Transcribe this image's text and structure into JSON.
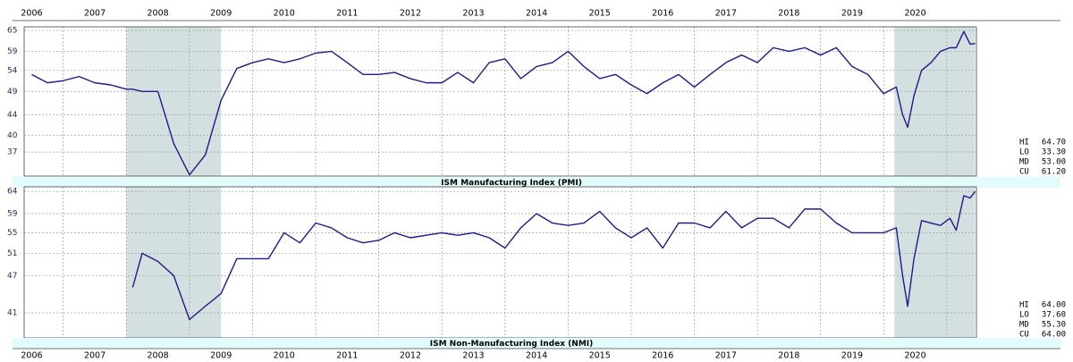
{
  "chart_data": [
    {
      "type": "line",
      "title": "ISM Manufacturing Index (PMI)",
      "log": true,
      "grid": true,
      "color": "#1c1c8a",
      "shade_color": "#d4e0e0",
      "xlim": [
        2006.38,
        2021.47
      ],
      "xticks": [
        {
          "value": 2006,
          "label": "2006"
        },
        {
          "value": 2007,
          "label": "2007"
        },
        {
          "value": 2008,
          "label": "2008"
        },
        {
          "value": 2009,
          "label": "2009"
        },
        {
          "value": 2010,
          "label": "2010"
        },
        {
          "value": 2011,
          "label": "2011"
        },
        {
          "value": 2012,
          "label": "2012"
        },
        {
          "value": 2013,
          "label": "2013"
        },
        {
          "value": 2014,
          "label": "2014"
        },
        {
          "value": 2015,
          "label": "2015"
        },
        {
          "value": 2016,
          "label": "2016"
        },
        {
          "value": 2017,
          "label": "2017"
        },
        {
          "value": 2018,
          "label": "2018"
        },
        {
          "value": 2019,
          "label": "2019"
        },
        {
          "value": 2020,
          "label": "2020"
        }
      ],
      "ylim": [
        33.1,
        66.1
      ],
      "yticks": [
        65,
        59,
        54,
        49,
        44,
        40,
        37
      ],
      "shaded_ranges": [
        [
          2008.0,
          2009.5
        ],
        [
          2020.17,
          2021.45
        ]
      ],
      "x": [
        2006.5,
        2006.75,
        2007,
        2007.25,
        2007.5,
        2007.75,
        2008,
        2008.1,
        2008.25,
        2008.5,
        2008.75,
        2009,
        2009.25,
        2009.5,
        2009.75,
        2010,
        2010.25,
        2010.5,
        2010.75,
        2011,
        2011.25,
        2011.5,
        2011.75,
        2012,
        2012.25,
        2012.5,
        2012.75,
        2013,
        2013.25,
        2013.5,
        2013.75,
        2014,
        2014.25,
        2014.5,
        2014.75,
        2015,
        2015.25,
        2015.5,
        2015.75,
        2016,
        2016.25,
        2016.5,
        2016.75,
        2017,
        2017.25,
        2017.5,
        2017.75,
        2018,
        2018.25,
        2018.5,
        2018.75,
        2019,
        2019.25,
        2019.5,
        2019.75,
        2020,
        2020.2,
        2020.3,
        2020.38,
        2020.48,
        2020.6,
        2020.75,
        2020.9,
        2021.05,
        2021.15,
        2021.27,
        2021.37,
        2021.45
      ],
      "series": [
        {
          "color": "#1c1c8a",
          "values": [
            53,
            51,
            51.5,
            52.5,
            51,
            50.5,
            49.5,
            49.5,
            49,
            49,
            38.5,
            33.3,
            36.5,
            47,
            54.5,
            56,
            57,
            56,
            57,
            58.5,
            59,
            56,
            53,
            53,
            53.5,
            52,
            51,
            51,
            53.5,
            51,
            56,
            57,
            52,
            55,
            56,
            59,
            55,
            52,
            53,
            50.5,
            48.5,
            51,
            53,
            50,
            53,
            56,
            58,
            56,
            60,
            59,
            60,
            58,
            60,
            55,
            53,
            48.5,
            50,
            44,
            41.5,
            48,
            54,
            56,
            59,
            60,
            60,
            64.7,
            61,
            61.2
          ]
        }
      ],
      "stats": {
        "labels": [
          "HI",
          "LO",
          "MD",
          "CU"
        ],
        "values": [
          64.7,
          33.3,
          53,
          61.2
        ],
        "value_labels": [
          "64.70",
          "33.30",
          "53.00",
          "61.20"
        ]
      }
    },
    {
      "type": "line",
      "title": "ISM Non-Manufacturing Index (NMI)",
      "log": true,
      "grid": true,
      "color": "#1c1c8a",
      "shade_color": "#d4e0e0",
      "xlim": [
        2006.38,
        2021.47
      ],
      "xticks": [
        {
          "value": 2006,
          "label": "2006"
        },
        {
          "value": 2007,
          "label": "2007"
        },
        {
          "value": 2008,
          "label": "2008"
        },
        {
          "value": 2009,
          "label": "2009"
        },
        {
          "value": 2010,
          "label": "2010"
        },
        {
          "value": 2011,
          "label": "2011"
        },
        {
          "value": 2012,
          "label": "2012"
        },
        {
          "value": 2013,
          "label": "2013"
        },
        {
          "value": 2014,
          "label": "2014"
        },
        {
          "value": 2015,
          "label": "2015"
        },
        {
          "value": 2016,
          "label": "2016"
        },
        {
          "value": 2017,
          "label": "2017"
        },
        {
          "value": 2018,
          "label": "2018"
        },
        {
          "value": 2019,
          "label": "2019"
        },
        {
          "value": 2020,
          "label": "2020"
        }
      ],
      "ylim": [
        37.4,
        65.1
      ],
      "yticks": [
        64,
        59,
        55,
        51,
        47,
        41
      ],
      "shaded_ranges": [
        [
          2008.0,
          2009.5
        ],
        [
          2020.17,
          2021.45
        ]
      ],
      "x": [
        2006.5,
        2006.75,
        2007,
        2007.25,
        2007.5,
        2007.75,
        2008,
        2008.1,
        2008.25,
        2008.5,
        2008.75,
        2009,
        2009.25,
        2009.5,
        2009.75,
        2010,
        2010.25,
        2010.5,
        2010.75,
        2011,
        2011.25,
        2011.5,
        2011.75,
        2012,
        2012.25,
        2012.5,
        2012.75,
        2013,
        2013.25,
        2013.5,
        2013.75,
        2014,
        2014.25,
        2014.5,
        2014.75,
        2015,
        2015.25,
        2015.5,
        2015.75,
        2016,
        2016.25,
        2016.5,
        2016.75,
        2017,
        2017.25,
        2017.5,
        2017.75,
        2018,
        2018.25,
        2018.5,
        2018.75,
        2019,
        2019.25,
        2019.5,
        2019.75,
        2020,
        2020.2,
        2020.3,
        2020.38,
        2020.48,
        2020.6,
        2020.75,
        2020.9,
        2021.05,
        2021.15,
        2021.27,
        2021.37,
        2021.45
      ],
      "series": [
        {
          "color": "#1c1c8a",
          "values": [
            null,
            null,
            null,
            null,
            null,
            null,
            null,
            45,
            51,
            49.5,
            47,
            40,
            42,
            44,
            50,
            50,
            50,
            55,
            53,
            57,
            56,
            54,
            53,
            53.5,
            55,
            54,
            54.5,
            55,
            54.5,
            55,
            54,
            52,
            56,
            59,
            57,
            56.5,
            57,
            59.5,
            56,
            54,
            56,
            52,
            57,
            57,
            56,
            59.5,
            56,
            58,
            58,
            56,
            60,
            60,
            57,
            55,
            55,
            55,
            56,
            47,
            42,
            50,
            57.5,
            57,
            56.5,
            58,
            55.5,
            63,
            62.5,
            64
          ]
        }
      ],
      "stats": {
        "labels": [
          "HI",
          "LO",
          "MD",
          "CU"
        ],
        "values": [
          64,
          37.6,
          55.3,
          64
        ],
        "value_labels": [
          "64.00",
          "37.60",
          "55.30",
          "64.00"
        ]
      }
    }
  ]
}
